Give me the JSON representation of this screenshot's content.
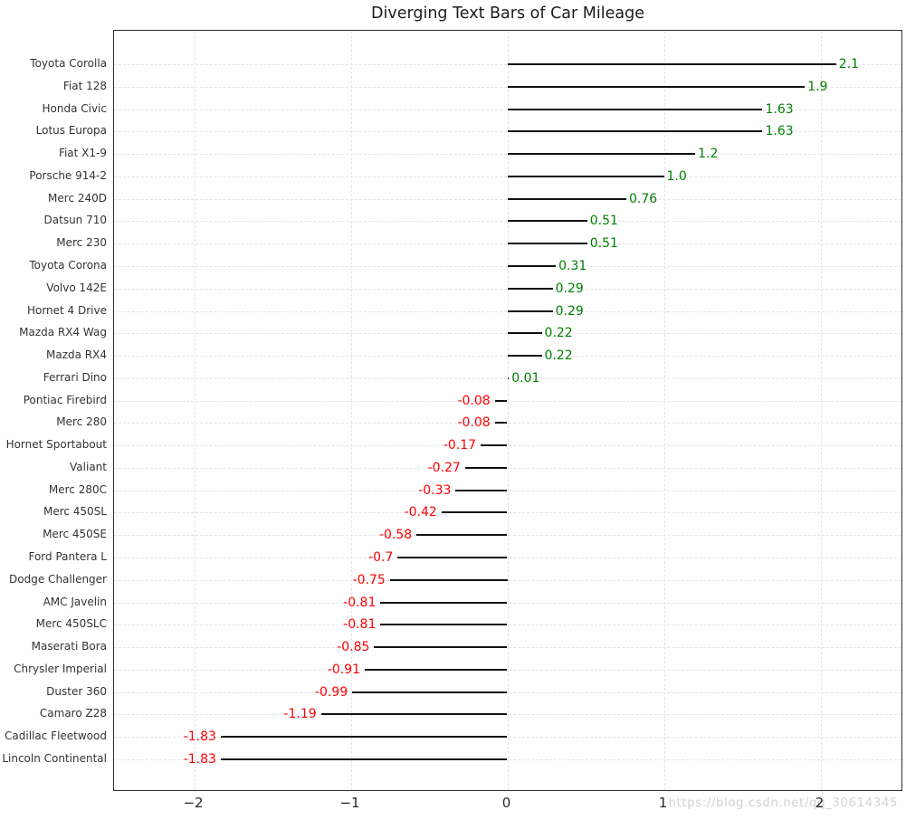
{
  "chart_data": {
    "type": "bar",
    "orientation": "horizontal-diverging",
    "title": "Diverging Text Bars of Car Mileage",
    "xlabel": "",
    "ylabel": "",
    "xlim": [
      -2.5,
      2.5
    ],
    "grid": "dashed",
    "legend": "none",
    "x_ticks": [
      {
        "label": "−2",
        "value": -2
      },
      {
        "label": "−1",
        "value": -1
      },
      {
        "label": "0",
        "value": 0
      },
      {
        "label": "1",
        "value": 1
      },
      {
        "label": "2",
        "value": 2
      }
    ],
    "categories": [
      "Toyota Corolla",
      "Fiat 128",
      "Honda Civic",
      "Lotus Europa",
      "Fiat X1-9",
      "Porsche 914-2",
      "Merc 240D",
      "Datsun 710",
      "Merc 230",
      "Toyota Corona",
      "Volvo 142E",
      "Hornet 4 Drive",
      "Mazda RX4 Wag",
      "Mazda RX4",
      "Ferrari Dino",
      "Pontiac Firebird",
      "Merc 280",
      "Hornet Sportabout",
      "Valiant",
      "Merc 280C",
      "Merc 450SL",
      "Merc 450SE",
      "Ford Pantera L",
      "Dodge Challenger",
      "AMC Javelin",
      "Merc 450SLC",
      "Maserati Bora",
      "Chrysler Imperial",
      "Duster 360",
      "Camaro Z28",
      "Cadillac Fleetwood",
      "Lincoln Continental"
    ],
    "values": [
      2.1,
      1.9,
      1.63,
      1.63,
      1.2,
      1.0,
      0.76,
      0.51,
      0.51,
      0.31,
      0.29,
      0.29,
      0.22,
      0.22,
      0.01,
      -0.08,
      -0.08,
      -0.17,
      -0.27,
      -0.33,
      -0.42,
      -0.58,
      -0.7,
      -0.75,
      -0.81,
      -0.81,
      -0.85,
      -0.91,
      -0.99,
      -1.19,
      -1.83,
      -1.83
    ],
    "value_labels": [
      "2.1",
      "1.9",
      "1.63",
      "1.63",
      "1.2",
      "1.0",
      "0.76",
      "0.51",
      "0.51",
      "0.31",
      "0.29",
      "0.29",
      "0.22",
      "0.22",
      "0.01",
      "-0.08",
      "-0.08",
      "-0.17",
      "-0.27",
      "-0.33",
      "-0.42",
      "-0.58",
      "-0.7",
      "-0.75",
      "-0.81",
      "-0.81",
      "-0.85",
      "-0.91",
      "-0.99",
      "-1.19",
      "-1.83",
      "-1.83"
    ],
    "colors": {
      "positive_text": "#008000",
      "negative_text": "#ff0000",
      "bar": "#111111",
      "grid": "#e2e3ec",
      "spine": "#2e2e2e",
      "title": "#1c1c1c",
      "tick_label": "#262626",
      "category_label": "#333333"
    }
  },
  "watermark": {
    "text": "https://blog.csdn.net/qq_30614345",
    "color": "#d2d2d8"
  }
}
